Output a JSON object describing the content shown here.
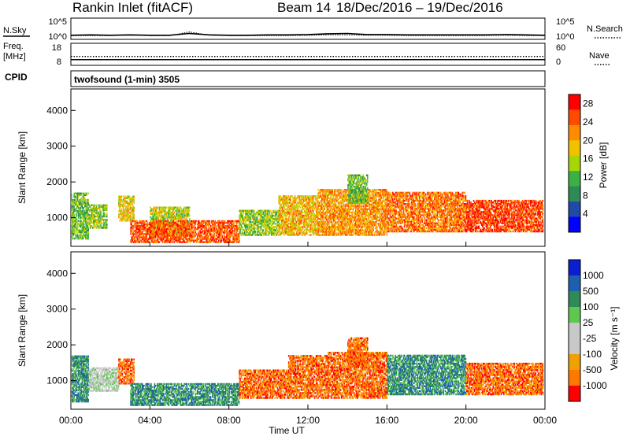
{
  "header": {
    "station": "Rankin Inlet (fitACF)",
    "beam": "Beam 14",
    "date_range": "18/Dec/2016 – 19/Dec/2016"
  },
  "colors": {
    "power_scale": [
      "#0000ff",
      "#1f4aa8",
      "#2e8b57",
      "#3cb043",
      "#a6d608",
      "#f2c200",
      "#ff8c00",
      "#ff4a00",
      "#ff0000"
    ],
    "velocity_scale": [
      "#0a1fd0",
      "#1e5fb0",
      "#2e8b57",
      "#5cc850",
      "#c8c8c8",
      "#c8c8c8",
      "#f0a000",
      "#ff7800",
      "#ff0000"
    ],
    "ground_scatter": "#c0c0c0"
  },
  "chart_data": [
    {
      "type": "line",
      "name": "noise-panel",
      "left_label": "N.Sky",
      "left_ticks": [
        "10^5",
        "10^0"
      ],
      "right_label": "N.Search",
      "right_ticks": [
        "10^5",
        "10^0"
      ],
      "x": [
        0,
        1,
        2,
        3,
        4,
        5,
        6,
        7,
        8,
        9,
        10,
        11,
        12,
        13,
        14,
        15,
        16,
        17,
        18,
        19,
        20,
        21,
        22,
        23,
        24
      ],
      "series": [
        {
          "name": "N.Sky",
          "values": [
            0.7,
            0.8,
            0.7,
            0.8,
            0.7,
            0.7,
            1.2,
            0.8,
            0.7,
            0.7,
            0.8,
            0.8,
            0.9,
            1.1,
            1.2,
            0.9,
            0.9,
            0.8,
            0.8,
            0.8,
            0.8,
            0.8,
            0.9,
            0.8,
            0.7
          ]
        },
        {
          "name": "N.Search",
          "values": [
            0.6,
            0.6,
            0.6,
            0.7,
            0.6,
            0.6,
            1.6,
            0.7,
            0.6,
            0.6,
            0.6,
            0.6,
            0.7,
            0.8,
            0.8,
            0.7,
            0.7,
            0.6,
            0.6,
            0.6,
            0.6,
            0.6,
            0.7,
            0.6,
            0.6
          ]
        }
      ]
    },
    {
      "type": "line",
      "name": "freq-nave-panel",
      "left_label": "Freq.",
      "left_unit": "[MHz]",
      "left_ticks": [
        18,
        8
      ],
      "right_label": "Nave",
      "right_ticks": [
        60,
        0
      ],
      "x": [
        0,
        24
      ],
      "series": [
        {
          "name": "Freq.",
          "values": [
            10.2,
            10.2
          ]
        },
        {
          "name": "Nave",
          "values": [
            23,
            23
          ]
        }
      ]
    },
    {
      "type": "table",
      "name": "cpid-panel",
      "label": "CPID",
      "text": "twofsound (1-min) 3505"
    },
    {
      "type": "heatmap",
      "name": "power-panel",
      "ylabel": "Slant Range [km]",
      "y_ticks": [
        1000,
        2000,
        3000,
        4000
      ],
      "ylim": [
        200,
        4600
      ],
      "xlim": [
        0,
        24
      ],
      "colorbar_label": "Power [dB]",
      "colorbar_ticks": [
        4,
        8,
        12,
        16,
        20,
        24,
        28
      ],
      "colorbar_range": [
        0,
        30
      ],
      "regions": [
        {
          "t0": 0.0,
          "t1": 0.9,
          "r0": 400,
          "r1": 1700,
          "v": 12
        },
        {
          "t0": 0.9,
          "t1": 1.8,
          "r0": 700,
          "r1": 1350,
          "v": 14
        },
        {
          "t0": 2.4,
          "t1": 3.2,
          "r0": 900,
          "r1": 1600,
          "v": 18
        },
        {
          "t0": 4.0,
          "t1": 6.0,
          "r0": 500,
          "r1": 1300,
          "v": 16
        },
        {
          "t0": 3.0,
          "t1": 8.5,
          "r0": 300,
          "r1": 900,
          "v": 26
        },
        {
          "t0": 8.5,
          "t1": 10.5,
          "r0": 500,
          "r1": 1200,
          "v": 14
        },
        {
          "t0": 10.5,
          "t1": 12.5,
          "r0": 500,
          "r1": 1600,
          "v": 20
        },
        {
          "t0": 12.5,
          "t1": 16.0,
          "r0": 500,
          "r1": 1800,
          "v": 22
        },
        {
          "t0": 14.0,
          "t1": 15.0,
          "r0": 1400,
          "r1": 2200,
          "v": 12
        },
        {
          "t0": 16.0,
          "t1": 20.0,
          "r0": 600,
          "r1": 1700,
          "v": 24
        },
        {
          "t0": 20.0,
          "t1": 23.9,
          "r0": 600,
          "r1": 1500,
          "v": 27
        }
      ]
    },
    {
      "type": "heatmap",
      "name": "velocity-panel",
      "ylabel": "Slant Range [km]",
      "y_ticks": [
        1000,
        2000,
        3000,
        4000
      ],
      "ylim": [
        200,
        4600
      ],
      "xlim": [
        0,
        24
      ],
      "xlabel": "Time UT",
      "x_ticks": [
        "00:00",
        "04:00",
        "08:00",
        "12:00",
        "16:00",
        "20:00",
        "00:00"
      ],
      "colorbar_label": "Velocity [m s⁻¹]",
      "colorbar_ticks": [
        1000,
        500,
        100,
        25,
        -25,
        -100,
        -500,
        -1000
      ],
      "regions": [
        {
          "t0": 0.0,
          "t1": 0.9,
          "r0": 400,
          "r1": 1700,
          "v": 100
        },
        {
          "t0": 0.9,
          "t1": 2.4,
          "r0": 700,
          "r1": 1350,
          "v": 0
        },
        {
          "t0": 2.4,
          "t1": 3.2,
          "r0": 900,
          "r1": 1600,
          "v": -300
        },
        {
          "t0": 3.0,
          "t1": 8.5,
          "r0": 300,
          "r1": 900,
          "v": 120
        },
        {
          "t0": 8.5,
          "t1": 11.0,
          "r0": 500,
          "r1": 1300,
          "v": -150
        },
        {
          "t0": 11.0,
          "t1": 13.0,
          "r0": 500,
          "r1": 1700,
          "v": -400
        },
        {
          "t0": 13.0,
          "t1": 16.0,
          "r0": 500,
          "r1": 1800,
          "v": -300
        },
        {
          "t0": 14.0,
          "t1": 15.0,
          "r0": 1400,
          "r1": 2200,
          "v": -400
        },
        {
          "t0": 16.0,
          "t1": 20.0,
          "r0": 600,
          "r1": 1700,
          "v": 150
        },
        {
          "t0": 20.0,
          "t1": 23.9,
          "r0": 600,
          "r1": 1500,
          "v": -200
        }
      ]
    }
  ]
}
